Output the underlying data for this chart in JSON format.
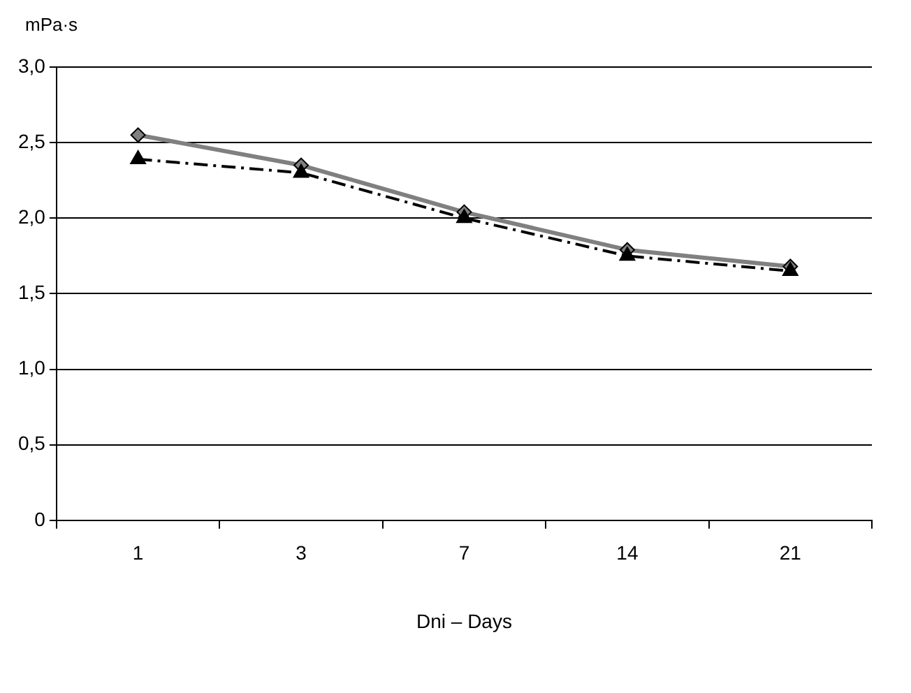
{
  "chart_data": {
    "type": "line",
    "ylabel": "mPa·s",
    "xlabel": "Dni – Days",
    "categories": [
      "1",
      "3",
      "7",
      "14",
      "21"
    ],
    "series": [
      {
        "color": "#808080",
        "values": [
          2.55,
          2.35,
          2.04,
          1.79,
          1.68
        ],
        "marker": "diamond",
        "line_style": "solid"
      },
      {
        "color": "#000000",
        "values": [
          2.39,
          2.3,
          2.0,
          1.75,
          1.65
        ],
        "marker": "triangle",
        "line_style": "dashed"
      }
    ],
    "ylim": [
      0,
      3
    ],
    "yticks": [
      {
        "value": 0,
        "label": "0"
      },
      {
        "value": 0.5,
        "label": "0,5"
      },
      {
        "value": 1,
        "label": "1,0"
      },
      {
        "value": 1.5,
        "label": "1,5"
      },
      {
        "value": 2,
        "label": "2,0"
      },
      {
        "value": 2.5,
        "label": "2,5"
      },
      {
        "value": 3,
        "label": "3,0"
      }
    ],
    "grid": "y"
  }
}
